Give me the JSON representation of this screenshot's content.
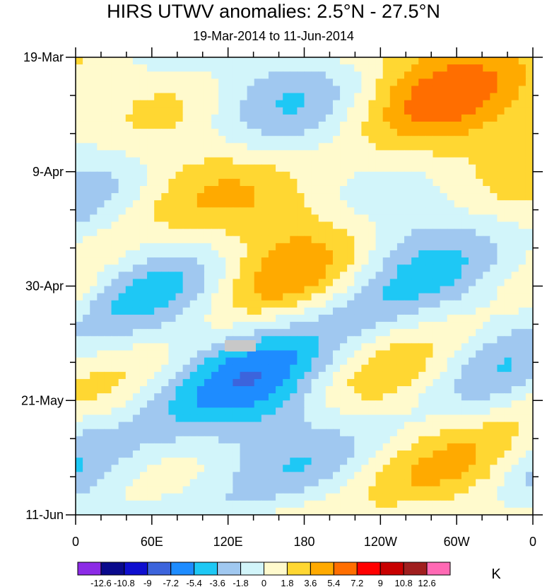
{
  "chart_data": {
    "type": "heatmap",
    "title": "HIRS UTWV anomalies: 2.5°N - 27.5°N",
    "subtitle": "19-Mar-2014 to 11-Jun-2014",
    "x_ticks": [
      "0",
      "60E",
      "120E",
      "180",
      "120W",
      "60W",
      "0"
    ],
    "x_range_degE": [
      0,
      360
    ],
    "y_ticks": [
      "19-Mar",
      "9-Apr",
      "30-Apr",
      "21-May",
      "11-Jun"
    ],
    "y_range_days": [
      0,
      84
    ],
    "colorbar_levels": [
      "-12.6",
      "-10.8",
      "-9",
      "-7.2",
      "-5.4",
      "-3.6",
      "-1.8",
      "0",
      "1.8",
      "3.6",
      "5.4",
      "7.2",
      "9",
      "10.8",
      "12.6"
    ],
    "colorbar_colors": [
      "#8c2be6",
      "#0a0a8c",
      "#0f0fcf",
      "#3c64dc",
      "#1e8cff",
      "#1ec8f5",
      "#a0c8f0",
      "#d2f5fa",
      "#fffacd",
      "#ffd732",
      "#ffaa00",
      "#ff6e00",
      "#ff0000",
      "#c80000",
      "#a01e1e",
      "#ff69b4"
    ],
    "missing_color": "#c8c8c8",
    "units": "K"
  }
}
